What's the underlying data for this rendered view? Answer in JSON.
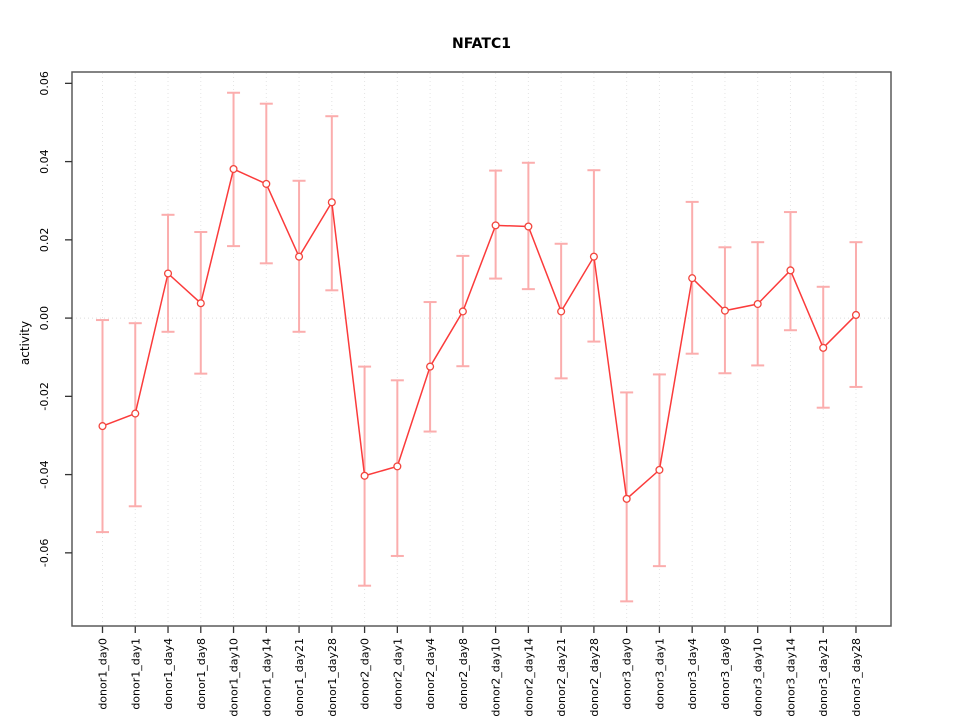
{
  "title": "NFATC1",
  "chart_data": {
    "type": "line",
    "title": "NFATC1",
    "xlabel": "",
    "ylabel": "activity",
    "categories": [
      "donor1_day0",
      "donor1_day1",
      "donor1_day4",
      "donor1_day8",
      "donor1_day10",
      "donor1_day14",
      "donor1_day21",
      "donor1_day28",
      "donor2_day0",
      "donor2_day1",
      "donor2_day4",
      "donor2_day8",
      "donor2_day10",
      "donor2_day14",
      "donor2_day21",
      "donor2_day28",
      "donor3_day0",
      "donor3_day1",
      "donor3_day4",
      "donor3_day8",
      "donor3_day10",
      "donor3_day14",
      "donor3_day21",
      "donor3_day28"
    ],
    "series": [
      {
        "name": "activity",
        "values": [
          -0.0276,
          -0.0244,
          0.0114,
          0.0038,
          0.0381,
          0.0343,
          0.0157,
          0.0296,
          -0.0403,
          -0.0379,
          -0.0124,
          0.0017,
          0.0237,
          0.0234,
          0.0017,
          0.0157,
          -0.0462,
          -0.0388,
          0.0102,
          0.0019,
          0.0036,
          0.0122,
          -0.0076,
          0.0008
        ],
        "error_low": [
          -0.0547,
          -0.0481,
          -0.0035,
          -0.0142,
          0.0184,
          0.014,
          -0.0035,
          0.0071,
          -0.0684,
          -0.0608,
          -0.029,
          -0.0123,
          0.0101,
          0.0074,
          -0.0154,
          -0.006,
          -0.0724,
          -0.0634,
          -0.0091,
          -0.0141,
          -0.0121,
          -0.0031,
          -0.0229,
          -0.0176
        ],
        "error_high": [
          -0.0005,
          -0.0013,
          0.0264,
          0.022,
          0.0576,
          0.0548,
          0.0351,
          0.0516,
          -0.0124,
          -0.0159,
          0.0041,
          0.0159,
          0.0377,
          0.0397,
          0.019,
          0.0378,
          -0.019,
          -0.0144,
          0.0297,
          0.0181,
          0.0194,
          0.0271,
          0.008,
          0.0194
        ]
      }
    ],
    "ytick_values": [
      0.06,
      0.04,
      0.02,
      0,
      -0.02,
      -0.04,
      -0.06
    ],
    "ytick_labels": [
      "0.06",
      "0.04",
      "0.02",
      "0.00",
      "-0.02",
      "-0.04",
      "-0.06"
    ],
    "ylim": [
      -0.0787,
      0.0629
    ],
    "grid": {
      "vertical_dotted_per_category": true,
      "zero_line_dotted": true
    },
    "legend_position": "none",
    "marker": "open-circle",
    "colors": {
      "line": "#fb3b3b",
      "marker": "#f2453d",
      "error_bar": "#fbadad",
      "grid_line": "#e4e4e4",
      "zero_line": "#dcdcdc",
      "box_border": "#5a5a5a",
      "tick": "#333333",
      "text": "#000000"
    }
  }
}
